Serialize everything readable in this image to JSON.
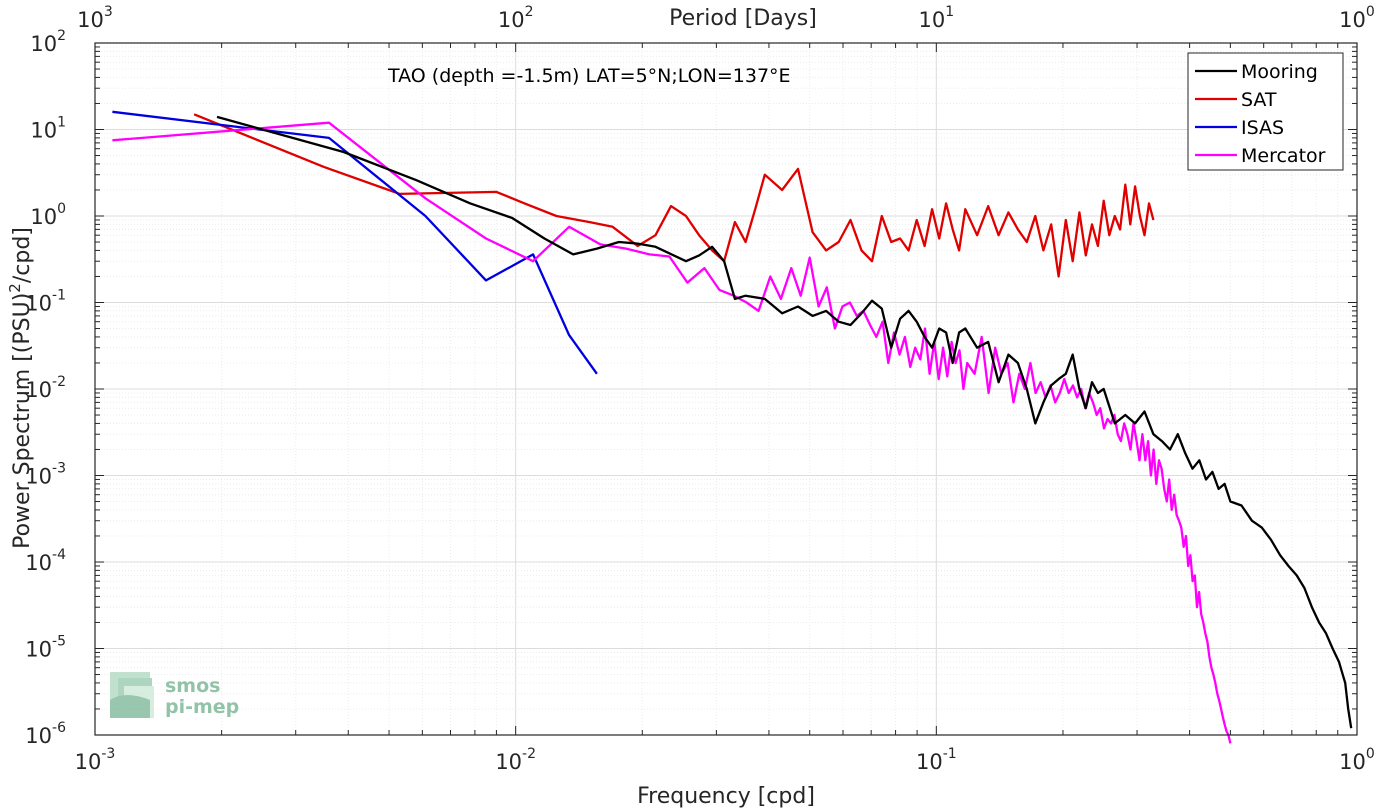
{
  "chart_data": {
    "type": "line",
    "title": "",
    "annotation": "TAO (depth =-1.5m) LAT=5°N;LON=137°E",
    "xlabel": "Frequency [cpd]",
    "ylabel_main": "Power Spectrum [(PSU)",
    "ylabel_sup": "2",
    "ylabel_tail": "/cpd]",
    "top_xlabel": "Period [Days]",
    "xscale": "log",
    "yscale": "log",
    "xlim": [
      0.001,
      1
    ],
    "ylim": [
      1e-06,
      100
    ],
    "grid": true,
    "legend_position": "top-right",
    "x_ticks": [
      {
        "value": 0.001,
        "base": "10",
        "exp": "-3"
      },
      {
        "value": 0.01,
        "base": "10",
        "exp": "-2"
      },
      {
        "value": 0.1,
        "base": "10",
        "exp": "-1"
      },
      {
        "value": 1,
        "base": "10",
        "exp": "0"
      }
    ],
    "top_ticks": [
      {
        "value": 0.001,
        "base": "10",
        "exp": "3"
      },
      {
        "value": 0.01,
        "base": "10",
        "exp": "2"
      },
      {
        "value": 0.1,
        "base": "10",
        "exp": "1"
      },
      {
        "value": 1,
        "base": "10",
        "exp": "0"
      }
    ],
    "y_ticks": [
      {
        "value": 1e-06,
        "base": "10",
        "exp": "-6"
      },
      {
        "value": 1e-05,
        "base": "10",
        "exp": "-5"
      },
      {
        "value": 0.0001,
        "base": "10",
        "exp": "-4"
      },
      {
        "value": 0.001,
        "base": "10",
        "exp": "-3"
      },
      {
        "value": 0.01,
        "base": "10",
        "exp": "-2"
      },
      {
        "value": 0.1,
        "base": "10",
        "exp": "-1"
      },
      {
        "value": 1,
        "base": "10",
        "exp": "0"
      },
      {
        "value": 10,
        "base": "10",
        "exp": "1"
      },
      {
        "value": 100,
        "base": "10",
        "exp": "2"
      }
    ],
    "series": [
      {
        "name": "Mooring",
        "color": "#000000",
        "x": [
          0.00195,
          0.0039,
          0.0058,
          0.0078,
          0.0098,
          0.0117,
          0.0137,
          0.0156,
          0.0176,
          0.0195,
          0.0215,
          0.0254,
          0.0273,
          0.0293,
          0.0313,
          0.0332,
          0.0352,
          0.0391,
          0.043,
          0.0469,
          0.0508,
          0.0547,
          0.0586,
          0.0625,
          0.0664,
          0.0703,
          0.0742,
          0.0781,
          0.082,
          0.0859,
          0.0898,
          0.0938,
          0.0977,
          0.1016,
          0.1055,
          0.1094,
          0.1133,
          0.1172,
          0.125,
          0.1328,
          0.1406,
          0.1484,
          0.1563,
          0.1641,
          0.1719,
          0.1797,
          0.1875,
          0.1953,
          0.2031,
          0.2109,
          0.2188,
          0.2266,
          0.2344,
          0.2422,
          0.25,
          0.2656,
          0.2813,
          0.2969,
          0.3125,
          0.3281,
          0.3438,
          0.3594,
          0.375,
          0.3906,
          0.4063,
          0.4219,
          0.4375,
          0.4531,
          0.4688,
          0.4844,
          0.5,
          0.5313,
          0.5625,
          0.5938,
          0.625,
          0.6563,
          0.6875,
          0.7188,
          0.75,
          0.7813,
          0.8125,
          0.8438,
          0.875,
          0.9063,
          0.9375,
          0.9531,
          0.9688
        ],
        "y": [
          14,
          5.5,
          2.6,
          1.4,
          0.95,
          0.55,
          0.36,
          0.42,
          0.5,
          0.48,
          0.44,
          0.3,
          0.35,
          0.44,
          0.3,
          0.11,
          0.12,
          0.11,
          0.075,
          0.09,
          0.07,
          0.08,
          0.06,
          0.055,
          0.075,
          0.105,
          0.085,
          0.03,
          0.065,
          0.08,
          0.06,
          0.04,
          0.03,
          0.05,
          0.045,
          0.02,
          0.045,
          0.05,
          0.03,
          0.035,
          0.012,
          0.025,
          0.02,
          0.01,
          0.004,
          0.007,
          0.011,
          0.013,
          0.015,
          0.025,
          0.01,
          0.006,
          0.012,
          0.009,
          0.01,
          0.004,
          0.005,
          0.004,
          0.0055,
          0.003,
          0.0025,
          0.002,
          0.003,
          0.0018,
          0.0012,
          0.0015,
          0.0009,
          0.0011,
          0.0007,
          0.0008,
          0.0005,
          0.00045,
          0.0003,
          0.00025,
          0.00018,
          0.00012,
          9e-05,
          7e-05,
          5e-05,
          3e-05,
          2e-05,
          1.5e-05,
          1e-05,
          7e-06,
          4e-06,
          2e-06,
          1.2e-06
        ]
      },
      {
        "name": "SAT",
        "color": "#e00000",
        "x": [
          0.00172,
          0.0035,
          0.0053,
          0.009,
          0.0105,
          0.0125,
          0.015,
          0.017,
          0.0195,
          0.0215,
          0.0234,
          0.0254,
          0.0273,
          0.0293,
          0.0313,
          0.0332,
          0.0352,
          0.0371,
          0.0391,
          0.043,
          0.0469,
          0.0508,
          0.0547,
          0.0586,
          0.0625,
          0.0664,
          0.0703,
          0.0742,
          0.0781,
          0.082,
          0.0859,
          0.0898,
          0.0938,
          0.0977,
          0.1016,
          0.1055,
          0.1094,
          0.1133,
          0.1172,
          0.125,
          0.1328,
          0.1406,
          0.1484,
          0.1563,
          0.1641,
          0.1719,
          0.1797,
          0.1875,
          0.1953,
          0.2031,
          0.2109,
          0.2188,
          0.2266,
          0.2344,
          0.2422,
          0.25,
          0.2578,
          0.2656,
          0.2734,
          0.2813,
          0.2891,
          0.2969,
          0.3047,
          0.3125,
          0.3203,
          0.3281
        ],
        "y": [
          15,
          3.7,
          1.8,
          1.9,
          1.4,
          1.0,
          0.85,
          0.75,
          0.45,
          0.6,
          1.3,
          1.0,
          0.6,
          0.4,
          0.3,
          0.85,
          0.5,
          1.2,
          3.0,
          2.0,
          3.5,
          0.65,
          0.4,
          0.5,
          0.9,
          0.4,
          0.3,
          1.0,
          0.5,
          0.55,
          0.4,
          0.9,
          0.45,
          1.2,
          0.55,
          1.4,
          0.7,
          0.4,
          1.2,
          0.6,
          1.3,
          0.6,
          1.1,
          0.7,
          0.5,
          1.0,
          0.4,
          0.8,
          0.2,
          0.9,
          0.3,
          1.1,
          0.35,
          0.8,
          0.45,
          1.5,
          0.6,
          1.0,
          0.7,
          2.3,
          0.8,
          2.2,
          1.0,
          0.6,
          1.4,
          0.9
        ]
      },
      {
        "name": "ISAS",
        "color": "#0000e0",
        "x": [
          0.0011,
          0.0036,
          0.0061,
          0.0085,
          0.011,
          0.0134,
          0.0156
        ],
        "y": [
          16,
          8.0,
          1.0,
          0.18,
          0.36,
          0.042,
          0.015
        ]
      },
      {
        "name": "Mercator",
        "color": "#ff00ff",
        "x": [
          0.0011,
          0.0036,
          0.0061,
          0.0085,
          0.011,
          0.0134,
          0.0159,
          0.0183,
          0.0208,
          0.0232,
          0.0256,
          0.0281,
          0.0305,
          0.033,
          0.0354,
          0.0378,
          0.0403,
          0.0427,
          0.0452,
          0.0476,
          0.05,
          0.0525,
          0.0549,
          0.0574,
          0.0598,
          0.0623,
          0.0647,
          0.0671,
          0.0696,
          0.072,
          0.0745,
          0.0769,
          0.0793,
          0.0818,
          0.0842,
          0.0867,
          0.0891,
          0.0916,
          0.094,
          0.0964,
          0.0989,
          0.1013,
          0.1038,
          0.1062,
          0.1087,
          0.1111,
          0.1135,
          0.116,
          0.1184,
          0.1233,
          0.1282,
          0.1331,
          0.138,
          0.1428,
          0.1477,
          0.1526,
          0.1575,
          0.1624,
          0.1673,
          0.1722,
          0.177,
          0.1819,
          0.1868,
          0.1917,
          0.1966,
          0.2015,
          0.2064,
          0.2113,
          0.2161,
          0.221,
          0.2259,
          0.2308,
          0.2357,
          0.2406,
          0.2454,
          0.2503,
          0.2552,
          0.2601,
          0.265,
          0.2698,
          0.2747,
          0.2796,
          0.2845,
          0.2894,
          0.2943,
          0.2992,
          0.3041,
          0.309,
          0.3138,
          0.3187,
          0.3236,
          0.3285,
          0.3334,
          0.3383,
          0.3432,
          0.3481,
          0.353,
          0.3578,
          0.3627,
          0.3676,
          0.3725,
          0.3774,
          0.3823,
          0.3872,
          0.3921,
          0.397,
          0.4018,
          0.4067,
          0.4116,
          0.4165,
          0.4214,
          0.4263,
          0.4312,
          0.436,
          0.4409,
          0.4458,
          0.4507,
          0.4556,
          0.4605,
          0.4654,
          0.4703,
          0.4752,
          0.48,
          0.4849,
          0.4898,
          0.4947,
          0.5
        ],
        "y": [
          7.5,
          12.0,
          1.6,
          0.55,
          0.3,
          0.75,
          0.47,
          0.42,
          0.36,
          0.34,
          0.17,
          0.25,
          0.14,
          0.12,
          0.1,
          0.08,
          0.2,
          0.11,
          0.25,
          0.12,
          0.33,
          0.09,
          0.15,
          0.05,
          0.09,
          0.1,
          0.07,
          0.08,
          0.055,
          0.04,
          0.06,
          0.02,
          0.045,
          0.025,
          0.04,
          0.018,
          0.03,
          0.022,
          0.05,
          0.015,
          0.035,
          0.013,
          0.03,
          0.014,
          0.035,
          0.02,
          0.028,
          0.01,
          0.02,
          0.015,
          0.04,
          0.009,
          0.03,
          0.015,
          0.02,
          0.007,
          0.015,
          0.01,
          0.02,
          0.009,
          0.012,
          0.008,
          0.011,
          0.007,
          0.009,
          0.013,
          0.009,
          0.011,
          0.008,
          0.01,
          0.006,
          0.009,
          0.007,
          0.005,
          0.006,
          0.0035,
          0.0045,
          0.004,
          0.005,
          0.003,
          0.0025,
          0.004,
          0.003,
          0.002,
          0.004,
          0.0025,
          0.0015,
          0.003,
          0.0015,
          0.0025,
          0.001,
          0.002,
          0.0008,
          0.0015,
          0.0012,
          0.0007,
          0.0005,
          0.0009,
          0.0004,
          0.0006,
          0.00035,
          0.0003,
          0.00025,
          0.00015,
          0.0002,
          9e-05,
          0.00012,
          6e-05,
          7e-05,
          3e-05,
          4.5e-05,
          2.5e-05,
          2e-05,
          1.5e-05,
          1.2e-05,
          8e-06,
          6e-06,
          5e-06,
          4e-06,
          3e-06,
          2.5e-06,
          2e-06,
          1.6e-06,
          1.3e-06,
          1.1e-06,
          1e-06,
          8e-07
        ]
      }
    ]
  },
  "watermark": {
    "line1": "smos",
    "line2": "pi-mep"
  }
}
